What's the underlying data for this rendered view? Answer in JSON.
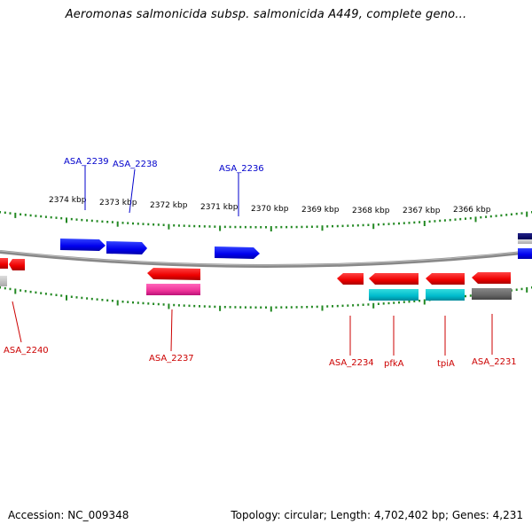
{
  "title": "Aeromonas salmonicida subsp. salmonicida A449, complete geno...",
  "footer": {
    "accession": "Accession: NC_009348",
    "summary": "Topology: circular; Length: 4,702,402 bp; Genes: 4,231"
  },
  "ticks": [
    "2374 kbp",
    "2373 kbp",
    "2372 kbp",
    "2371 kbp",
    "2370 kbp",
    "2369 kbp",
    "2368 kbp",
    "2367 kbp",
    "2366 kbp"
  ],
  "colors": {
    "forward_gene": "#0000ee",
    "reverse_gene": "#ee0000",
    "rna_magenta": "#ee3399",
    "rna_cyan": "#00bbcc",
    "pseudo_gray": "#666666",
    "backbone": "#888888",
    "tick": "#228822",
    "forward_label": "#0000cc",
    "reverse_label": "#cc0000"
  },
  "genes_forward": [
    {
      "label": "ASA_2239"
    },
    {
      "label": "ASA_2238"
    },
    {
      "label": "ASA_2236"
    }
  ],
  "genes_reverse": [
    {
      "label": "ASA_2240"
    },
    {
      "label": "ASA_2237"
    },
    {
      "label": "ASA_2234"
    },
    {
      "label": "pfkA"
    },
    {
      "label": "tpiA"
    },
    {
      "label": "ASA_2231"
    }
  ]
}
